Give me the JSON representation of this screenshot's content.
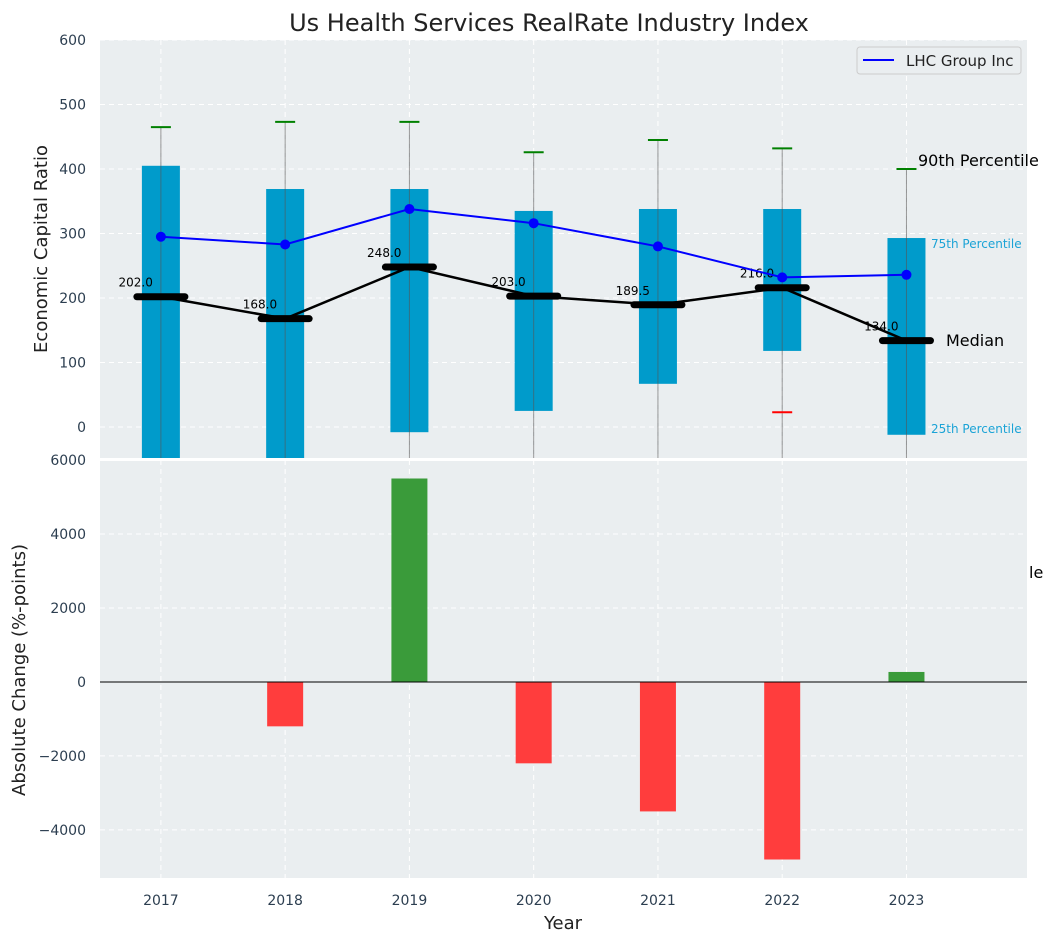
{
  "chart_data": [
    {
      "type": "box",
      "title": "Us Health Services RealRate Industry Index",
      "ylabel": "Economic Capital Ratio",
      "ylim": [
        -48,
        600
      ],
      "yticks": [
        0,
        100,
        200,
        300,
        400,
        500,
        600
      ],
      "categories": [
        "2017",
        "2018",
        "2019",
        "2020",
        "2021",
        "2022",
        "2023"
      ],
      "p25": [
        -60,
        -60,
        -8,
        25,
        67,
        118,
        -12
      ],
      "p75": [
        405,
        369,
        369,
        335,
        338,
        338,
        293
      ],
      "median": [
        202.0,
        168.0,
        248.0,
        203.0,
        189.5,
        216.0,
        134.0
      ],
      "median_labels": [
        "202.0",
        "168.0",
        "248.0",
        "203.0",
        "189.5",
        "216.0",
        "134.0"
      ],
      "p90": [
        465,
        473,
        473,
        426,
        445,
        432,
        400
      ],
      "p10": [
        null,
        null,
        null,
        null,
        null,
        23,
        null
      ],
      "series": [
        {
          "name": "LHC Group Inc",
          "values": [
            295,
            283,
            338,
            316,
            280,
            232,
            236
          ],
          "color": "#0000ff"
        }
      ],
      "legend": "top-right",
      "annotations": {
        "p90": "90th Percentile",
        "p75": "75th Percentile",
        "median": "Median",
        "p25": "25th Percentile"
      },
      "colors": {
        "box": "#009bcb",
        "whisker_high": "#008000",
        "whisker_low": "#ff0000",
        "median": "#000000",
        "annot_blue": "#1ba3d6"
      },
      "grid": true
    },
    {
      "type": "bar",
      "xlabel": "Year",
      "ylabel": "Absolute Change (%-points)",
      "ylim": [
        -5300,
        6000
      ],
      "yticks": [
        -4000,
        -2000,
        0,
        2000,
        4000,
        6000
      ],
      "ytick_labels": [
        "−4000",
        "−2000",
        "0",
        "2000",
        "4000",
        "6000"
      ],
      "categories": [
        "2017",
        "2018",
        "2019",
        "2020",
        "2021",
        "2022",
        "2023"
      ],
      "values": [
        0,
        -1200,
        5500,
        -2200,
        -3500,
        -4800,
        270
      ],
      "clipped_annotation": "le",
      "colors": {
        "positive": "#3a9b3a",
        "negative": "#ff3d3d"
      },
      "grid": true
    }
  ]
}
